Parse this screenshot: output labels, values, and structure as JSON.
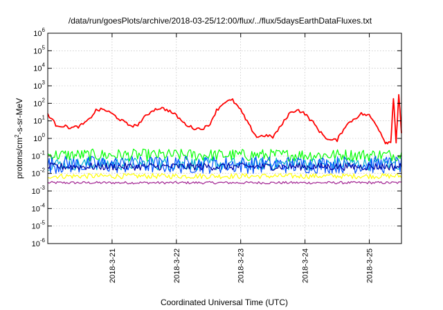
{
  "chart_data": {
    "type": "line",
    "title": "/data/run/goesPlots/archive/2018-03-25/12:00/flux/../flux/5daysEarthDataFluxes.txt",
    "xlabel": "Coordinated Universal Time (UTC)",
    "ylabel": "protons/cm²-s-sr-MeV",
    "ylabel_parts": {
      "prefix": "protons/cm",
      "exp": "2",
      "suffix": "-s-sr-MeV"
    },
    "yscale": "log",
    "ylim": [
      1e-06,
      1000000.0
    ],
    "y_ticks": [
      {
        "base": "10",
        "exp": "6",
        "value": 1000000.0
      },
      {
        "base": "10",
        "exp": "5",
        "value": 100000.0
      },
      {
        "base": "10",
        "exp": "4",
        "value": 10000.0
      },
      {
        "base": "10",
        "exp": "3",
        "value": 1000.0
      },
      {
        "base": "10",
        "exp": "2",
        "value": 100.0
      },
      {
        "base": "10",
        "exp": "1",
        "value": 10.0
      },
      {
        "base": "10",
        "exp": "0",
        "value": 1
      },
      {
        "base": "10",
        "exp": "-1",
        "value": 0.1
      },
      {
        "base": "10",
        "exp": "-2",
        "value": 0.01
      },
      {
        "base": "10",
        "exp": "-3",
        "value": 0.001
      },
      {
        "base": "10",
        "exp": "-4",
        "value": 0.0001
      },
      {
        "base": "10",
        "exp": "-5",
        "value": 1e-05
      },
      {
        "base": "10",
        "exp": "-6",
        "value": 1e-06
      }
    ],
    "xlim": [
      "2018-03-20 00:00",
      "2018-03-25 12:00"
    ],
    "x_ticks": [
      {
        "label": "2018-3-21",
        "value": "2018-03-21 00:00"
      },
      {
        "label": "2018-3-22",
        "value": "2018-03-22 00:00"
      },
      {
        "label": "2018-3-23",
        "value": "2018-03-23 00:00"
      },
      {
        "label": "2018-3-24",
        "value": "2018-03-24 00:00"
      },
      {
        "label": "2018-3-25",
        "value": "2018-03-25 00:00"
      }
    ],
    "grid": true,
    "series": [
      {
        "color": "#ff0000",
        "x": [
          "2018-03-20 00:00",
          "2018-03-20 03:00",
          "2018-03-20 06:00",
          "2018-03-20 09:00",
          "2018-03-20 12:00",
          "2018-03-20 15:00",
          "2018-03-20 18:00",
          "2018-03-20 21:00",
          "2018-03-21 00:00",
          "2018-03-21 03:00",
          "2018-03-21 06:00",
          "2018-03-21 09:00",
          "2018-03-21 12:00",
          "2018-03-21 15:00",
          "2018-03-21 18:00",
          "2018-03-21 21:00",
          "2018-03-22 00:00",
          "2018-03-22 03:00",
          "2018-03-22 06:00",
          "2018-03-22 09:00",
          "2018-03-22 12:00",
          "2018-03-22 15:00",
          "2018-03-22 18:00",
          "2018-03-22 21:00",
          "2018-03-23 00:00",
          "2018-03-23 03:00",
          "2018-03-23 06:00",
          "2018-03-23 09:00",
          "2018-03-23 12:00",
          "2018-03-23 15:00",
          "2018-03-23 18:00",
          "2018-03-23 21:00",
          "2018-03-24 00:00",
          "2018-03-24 03:00",
          "2018-03-24 06:00",
          "2018-03-24 09:00",
          "2018-03-24 12:00",
          "2018-03-24 15:00",
          "2018-03-24 18:00",
          "2018-03-24 21:00",
          "2018-03-25 00:00",
          "2018-03-25 03:00",
          "2018-03-25 06:00",
          "2018-03-25 08:00",
          "2018-03-25 09:00",
          "2018-03-25 10:00",
          "2018-03-25 11:00",
          "2018-03-25 12:00"
        ],
        "values": [
          25,
          6,
          5,
          4,
          5,
          10,
          40,
          45,
          25,
          12,
          6,
          5,
          15,
          40,
          55,
          40,
          20,
          7,
          4,
          3.5,
          5,
          40,
          120,
          150,
          40,
          6,
          1.2,
          1.5,
          1.2,
          5,
          25,
          45,
          25,
          8,
          2,
          0.8,
          0.8,
          5,
          12,
          25,
          20,
          5,
          0.6,
          0.6,
          200,
          0.6,
          300,
          2
        ]
      },
      {
        "color": "#00ff00",
        "values_range": [
          0.05,
          0.25
        ]
      },
      {
        "color": "#00b0d0",
        "values_range": [
          0.015,
          0.08
        ]
      },
      {
        "color": "#0050ff",
        "values_range": [
          0.01,
          0.1
        ]
      },
      {
        "color": "#0000a0",
        "values_range": [
          0.015,
          0.04
        ]
      },
      {
        "color": "#ffff00",
        "values_range": [
          0.005,
          0.01
        ]
      },
      {
        "color": "#a02090",
        "values_range": [
          0.0025,
          0.0035
        ]
      }
    ]
  }
}
